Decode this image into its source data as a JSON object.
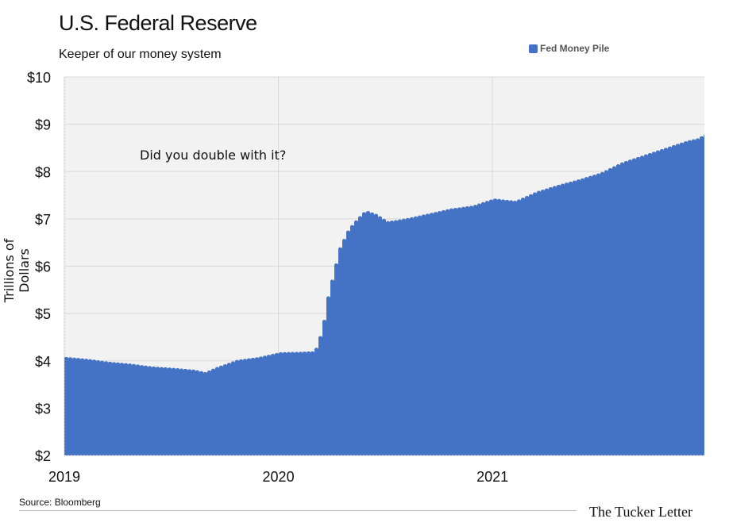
{
  "header": {
    "title": "U.S. Federal Reserve",
    "subtitle": "Keeper of our money system"
  },
  "footer": {
    "source": "Source: Bloomberg",
    "brand": "The Tucker Letter"
  },
  "colors": {
    "series": "#4472C4",
    "plot_bg": "#f2f2f2",
    "grid": "#d9d9d9"
  },
  "chart_data": {
    "type": "area",
    "title": "U.S. Federal Reserve",
    "subtitle": "Keeper of our money system",
    "ylabel": "Trillions of Dollars",
    "xlabel": "",
    "ylim": [
      2,
      10
    ],
    "xlim": [
      2019.0,
      2021.99
    ],
    "yticks": [
      2,
      3,
      4,
      5,
      6,
      7,
      8,
      9,
      10
    ],
    "ytick_labels": [
      "$2",
      "$3",
      "$4",
      "$5",
      "$6",
      "$7",
      "$8",
      "$9",
      "$10"
    ],
    "xticks": [
      2019,
      2020,
      2021
    ],
    "xtick_labels": [
      "2019",
      "2020",
      "2021"
    ],
    "grid": true,
    "legend_position": "top-right",
    "annotation": "Did you double with it?",
    "series": [
      {
        "name": "Fed Money Pile",
        "x": [
          2019.0,
          2019.1,
          2019.2,
          2019.3,
          2019.4,
          2019.5,
          2019.6,
          2019.65,
          2019.7,
          2019.8,
          2019.9,
          2020.0,
          2020.1,
          2020.15,
          2020.17,
          2020.2,
          2020.22,
          2020.25,
          2020.28,
          2020.32,
          2020.36,
          2020.4,
          2020.45,
          2020.5,
          2020.55,
          2020.6,
          2020.7,
          2020.8,
          2020.9,
          2021.0,
          2021.1,
          2021.2,
          2021.3,
          2021.4,
          2021.5,
          2021.6,
          2021.7,
          2021.8,
          2021.9,
          2021.95,
          2021.99
        ],
        "values": [
          4.08,
          4.04,
          3.98,
          3.94,
          3.88,
          3.85,
          3.81,
          3.76,
          3.86,
          4.02,
          4.08,
          4.18,
          4.19,
          4.2,
          4.28,
          4.7,
          5.28,
          5.85,
          6.4,
          6.78,
          7.0,
          7.18,
          7.1,
          6.95,
          6.98,
          7.02,
          7.12,
          7.22,
          7.28,
          7.43,
          7.38,
          7.58,
          7.72,
          7.84,
          7.98,
          8.2,
          8.35,
          8.5,
          8.65,
          8.7,
          8.8
        ]
      }
    ]
  }
}
